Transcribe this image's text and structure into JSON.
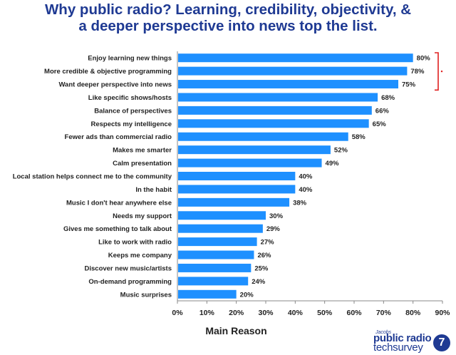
{
  "header": {
    "title_line1": "Why public radio? Learning, credibility, objectivity, &",
    "title_line2": "a deeper perspective into news top the list."
  },
  "chart_data": {
    "type": "bar",
    "orientation": "horizontal",
    "categories": [
      "Enjoy learning new things",
      "More credible & objective programming",
      "Want deeper perspective into news",
      "Like specific shows/hosts",
      "Balance of perspectives",
      "Respects my intelligence",
      "Fewer ads than commercial radio",
      "Makes me smarter",
      "Calm presentation",
      "Local station helps connect me to the community",
      "In the habit",
      "Music I don't hear anywhere else",
      "Needs my support",
      "Gives me something to talk about",
      "Like to work with radio",
      "Keeps me company",
      "Discover new music/artists",
      "On-demand programming",
      "Music surprises"
    ],
    "values": [
      80,
      78,
      75,
      68,
      66,
      65,
      58,
      52,
      49,
      40,
      40,
      38,
      30,
      29,
      27,
      26,
      25,
      24,
      20
    ],
    "data_labels": [
      "80%",
      "78%",
      "75%",
      "68%",
      "66%",
      "65%",
      "58%",
      "52%",
      "49%",
      "40%",
      "40%",
      "38%",
      "30%",
      "29%",
      "27%",
      "26%",
      "25%",
      "24%",
      "20%"
    ],
    "xlim": [
      0,
      90
    ],
    "ticks": [
      "0%",
      "10%",
      "20%",
      "30%",
      "40%",
      "50%",
      "60%",
      "70%",
      "80%",
      "90%"
    ],
    "xlabel": "Main Reason",
    "ylabel": "",
    "grid": false,
    "legend": "none",
    "bar_color": "#1e90ff",
    "bracket_color": "#e02020",
    "bracket_rows": [
      0,
      2
    ]
  },
  "brand": {
    "small": "Jacobs",
    "line1": "public radio",
    "line2": "techsurvey",
    "badge": "7"
  }
}
